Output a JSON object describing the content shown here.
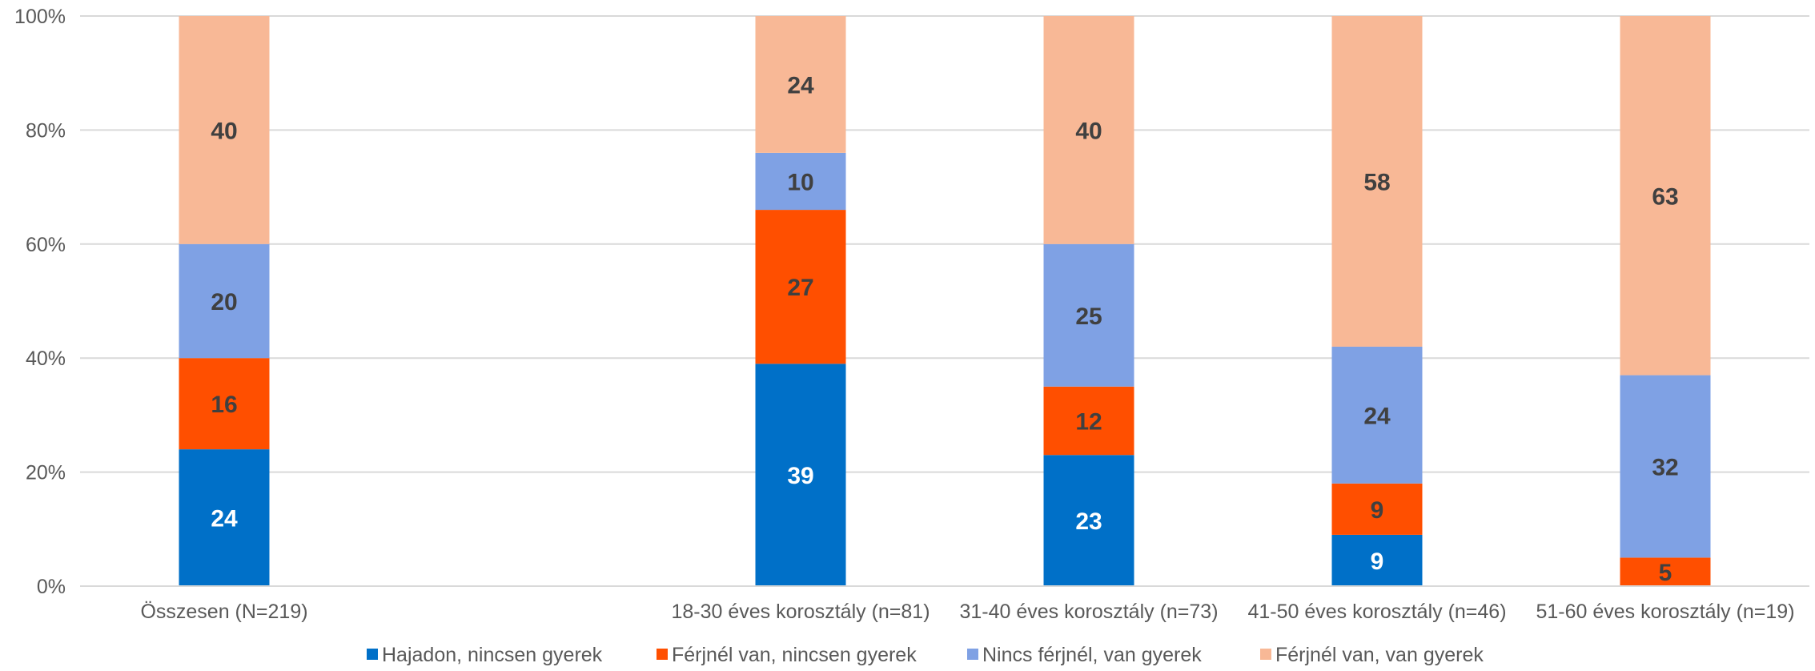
{
  "chart_data": {
    "type": "bar",
    "stacked": true,
    "percent": true,
    "categories": [
      "Összesen (N=219)",
      "",
      "18-30 éves korosztály (n=81)",
      "31-40 éves korosztály (n=73)",
      "41-50 éves korosztály (n=46)",
      "51-60 éves korosztály (n=19)"
    ],
    "series": [
      {
        "name": "Hajadon, nincsen gyerek",
        "color": "#0070C8",
        "label_color": "#ffffff",
        "values": [
          24,
          null,
          39,
          23,
          9,
          0
        ]
      },
      {
        "name": "Férjnél van, nincsen gyerek",
        "color": "#FF4F00",
        "label_color": "#404040",
        "values": [
          16,
          null,
          27,
          12,
          9,
          5
        ]
      },
      {
        "name": "Nincs férjnél, van gyerek",
        "color": "#7FA1E4",
        "label_color": "#404040",
        "values": [
          20,
          null,
          10,
          25,
          24,
          32
        ]
      },
      {
        "name": "Férjnél van, van gyerek",
        "color": "#F8B896",
        "label_color": "#404040",
        "values": [
          40,
          null,
          24,
          40,
          58,
          63
        ]
      }
    ],
    "y_ticks": [
      "0%",
      "20%",
      "40%",
      "60%",
      "80%",
      "100%"
    ],
    "ylim": [
      0,
      100
    ],
    "grid": true,
    "legend_position": "bottom"
  }
}
